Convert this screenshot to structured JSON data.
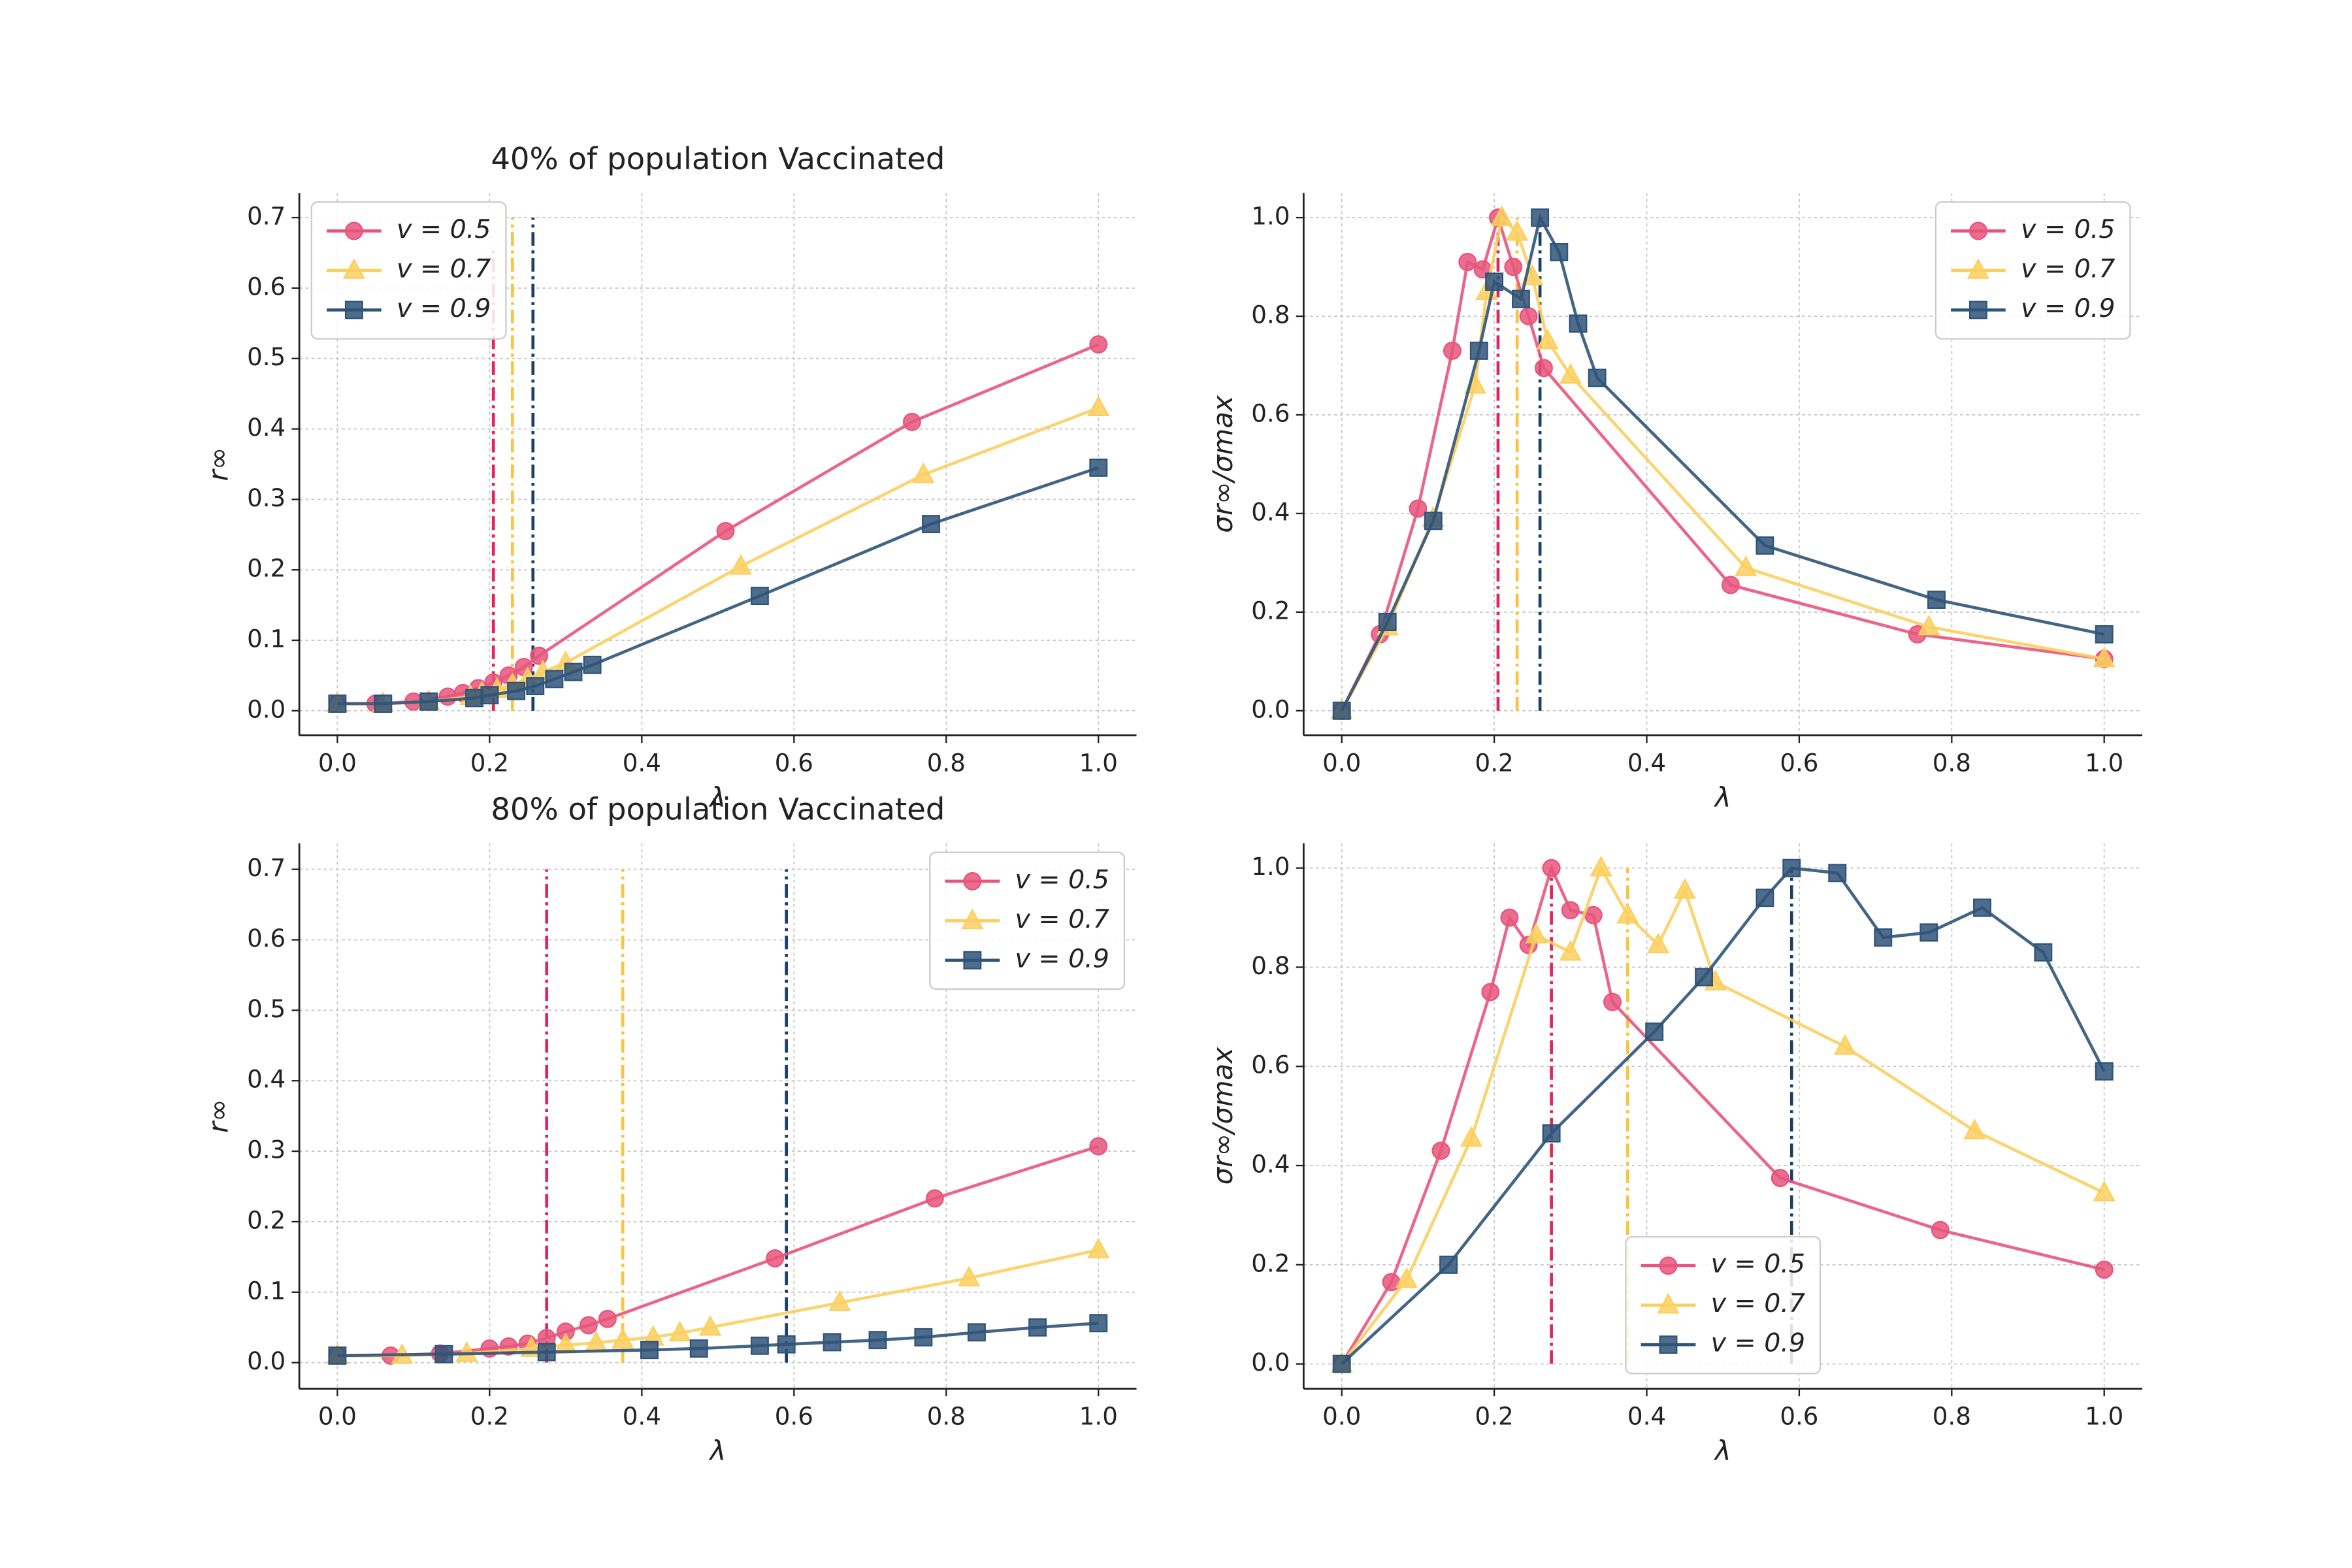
{
  "chart_data": [
    {
      "type": "line",
      "title": "40% of population Vaccinated",
      "xlabel": "λ",
      "ylabel": "r∞",
      "xlim": [
        -0.05,
        1.05
      ],
      "ylim": [
        -0.035,
        0.735
      ],
      "xticks": [
        {
          "value": 0,
          "label": "0.0"
        },
        0.2,
        0.4,
        0.6,
        0.8,
        {
          "value": 1,
          "label": "1.0"
        }
      ],
      "yticks": [
        {
          "value": 0,
          "label": "0.0"
        },
        0.1,
        0.2,
        0.3,
        0.4,
        0.5,
        0.6,
        0.7
      ],
      "grid": true,
      "legend": "upper left",
      "vlines": [
        {
          "x": 0.205,
          "ymin": 0,
          "ymax": 0.66,
          "color": "#e0245e"
        },
        {
          "x": 0.23,
          "ymin": 0,
          "ymax": 0.7,
          "color": "#f9c440"
        },
        {
          "x": 0.257,
          "ymin": 0,
          "ymax": 0.7,
          "color": "#1b3f66"
        }
      ],
      "series": [
        {
          "name": "v = 0.5",
          "color": "#e8557c",
          "marker": "circle",
          "x": [
            0,
            0.05,
            0.1,
            0.145,
            0.165,
            0.185,
            0.205,
            0.225,
            0.245,
            0.265,
            0.51,
            0.755,
            1.0
          ],
          "values": [
            0.01,
            0.01,
            0.013,
            0.02,
            0.025,
            0.032,
            0.04,
            0.05,
            0.062,
            0.078,
            0.255,
            0.41,
            0.52
          ]
        },
        {
          "name": "v = 0.7",
          "color": "#fbcf5f",
          "marker": "triangle",
          "x": [
            0,
            0.06,
            0.12,
            0.175,
            0.19,
            0.21,
            0.23,
            0.25,
            0.27,
            0.3,
            0.53,
            0.77,
            1.0
          ],
          "values": [
            0.01,
            0.01,
            0.013,
            0.02,
            0.025,
            0.03,
            0.037,
            0.045,
            0.055,
            0.068,
            0.205,
            0.335,
            0.43
          ]
        },
        {
          "name": "v = 0.9",
          "color": "#2f5478",
          "marker": "square",
          "x": [
            0,
            0.06,
            0.12,
            0.18,
            0.2,
            0.235,
            0.26,
            0.285,
            0.31,
            0.335,
            0.555,
            0.78,
            1.0
          ],
          "values": [
            0.01,
            0.01,
            0.013,
            0.018,
            0.022,
            0.028,
            0.035,
            0.045,
            0.055,
            0.065,
            0.163,
            0.265,
            0.345
          ]
        }
      ]
    },
    {
      "type": "line",
      "xlabel": "λ",
      "ylabel": "σr∞/σmax",
      "xlim": [
        -0.05,
        1.05
      ],
      "ylim": [
        -0.05,
        1.05
      ],
      "xticks": [
        {
          "value": 0,
          "label": "0.0"
        },
        0.2,
        0.4,
        0.6,
        0.8,
        {
          "value": 1,
          "label": "1.0"
        }
      ],
      "yticks": [
        {
          "value": 0,
          "label": "0.0"
        },
        0.2,
        0.4,
        0.6,
        0.8,
        {
          "value": 1,
          "label": "1.0"
        }
      ],
      "grid": true,
      "legend": "upper right",
      "vlines": [
        {
          "x": 0.205,
          "ymin": 0,
          "ymax": 0.97,
          "color": "#e0245e"
        },
        {
          "x": 0.23,
          "ymin": 0,
          "ymax": 1.0,
          "color": "#f9c440"
        },
        {
          "x": 0.26,
          "ymin": 0,
          "ymax": 1.0,
          "color": "#1b3f66"
        }
      ],
      "series": [
        {
          "name": "v = 0.5",
          "color": "#e8557c",
          "marker": "circle",
          "x": [
            0,
            0.05,
            0.1,
            0.145,
            0.165,
            0.185,
            0.205,
            0.225,
            0.245,
            0.265,
            0.51,
            0.755,
            1.0
          ],
          "values": [
            0,
            0.155,
            0.41,
            0.73,
            0.91,
            0.895,
            1.0,
            0.9,
            0.8,
            0.695,
            0.255,
            0.155,
            0.105
          ]
        },
        {
          "name": "v = 0.7",
          "color": "#fbcf5f",
          "marker": "triangle",
          "x": [
            0,
            0.06,
            0.12,
            0.175,
            0.19,
            0.21,
            0.23,
            0.25,
            0.27,
            0.3,
            0.53,
            0.77,
            1.0
          ],
          "values": [
            0,
            0.17,
            0.39,
            0.66,
            0.85,
            1.0,
            0.97,
            0.88,
            0.75,
            0.68,
            0.29,
            0.17,
            0.105
          ]
        },
        {
          "name": "v = 0.9",
          "color": "#2f5478",
          "marker": "square",
          "x": [
            0,
            0.06,
            0.12,
            0.18,
            0.2,
            0.235,
            0.26,
            0.285,
            0.31,
            0.335,
            0.555,
            0.78,
            1.0
          ],
          "values": [
            0,
            0.18,
            0.385,
            0.73,
            0.87,
            0.835,
            1.0,
            0.93,
            0.785,
            0.675,
            0.335,
            0.225,
            0.155
          ]
        }
      ]
    },
    {
      "type": "line",
      "title": "80% of population Vaccinated",
      "xlabel": "λ",
      "ylabel": "r∞",
      "xlim": [
        -0.05,
        1.05
      ],
      "ylim": [
        -0.037,
        0.737
      ],
      "xticks": [
        {
          "value": 0,
          "label": "0.0"
        },
        0.2,
        0.4,
        0.6,
        0.8,
        {
          "value": 1,
          "label": "1.0"
        }
      ],
      "yticks": [
        {
          "value": 0,
          "label": "0.0"
        },
        0.1,
        0.2,
        0.3,
        0.4,
        0.5,
        0.6,
        0.7
      ],
      "grid": true,
      "legend": "upper right",
      "vlines": [
        {
          "x": 0.275,
          "ymin": 0,
          "ymax": 0.7,
          "color": "#e0245e"
        },
        {
          "x": 0.375,
          "ymin": 0,
          "ymax": 0.7,
          "color": "#f9c440"
        },
        {
          "x": 0.59,
          "ymin": 0,
          "ymax": 0.7,
          "color": "#1b3f66"
        }
      ],
      "series": [
        {
          "name": "v = 0.5",
          "color": "#e8557c",
          "marker": "circle",
          "x": [
            0,
            0.07,
            0.135,
            0.2,
            0.225,
            0.25,
            0.275,
            0.3,
            0.33,
            0.355,
            0.575,
            0.785,
            1.0
          ],
          "values": [
            0.01,
            0.01,
            0.013,
            0.02,
            0.023,
            0.027,
            0.035,
            0.044,
            0.053,
            0.062,
            0.148,
            0.233,
            0.307
          ]
        },
        {
          "name": "v = 0.7",
          "color": "#fbcf5f",
          "marker": "triangle",
          "x": [
            0,
            0.085,
            0.17,
            0.255,
            0.3,
            0.34,
            0.375,
            0.415,
            0.45,
            0.49,
            0.66,
            0.83,
            1.0
          ],
          "values": [
            0.01,
            0.01,
            0.013,
            0.02,
            0.025,
            0.028,
            0.032,
            0.036,
            0.042,
            0.05,
            0.085,
            0.12,
            0.16
          ]
        },
        {
          "name": "v = 0.9",
          "color": "#2f5478",
          "marker": "square",
          "x": [
            0,
            0.14,
            0.275,
            0.41,
            0.475,
            0.555,
            0.59,
            0.65,
            0.71,
            0.77,
            0.84,
            0.92,
            1.0
          ],
          "values": [
            0.01,
            0.012,
            0.015,
            0.018,
            0.02,
            0.024,
            0.026,
            0.029,
            0.032,
            0.036,
            0.043,
            0.05,
            0.056
          ]
        }
      ]
    },
    {
      "type": "line",
      "xlabel": "λ",
      "ylabel": "σr∞/σmax",
      "xlim": [
        -0.05,
        1.05
      ],
      "ylim": [
        -0.05,
        1.05
      ],
      "xticks": [
        {
          "value": 0,
          "label": "0.0"
        },
        0.2,
        0.4,
        0.6,
        0.8,
        {
          "value": 1,
          "label": "1.0"
        }
      ],
      "yticks": [
        {
          "value": 0,
          "label": "0.0"
        },
        0.2,
        0.4,
        0.6,
        0.8,
        {
          "value": 1,
          "label": "1.0"
        }
      ],
      "grid": true,
      "legend": "lower center",
      "vlines": [
        {
          "x": 0.275,
          "ymin": 0,
          "ymax": 1.0,
          "color": "#e0245e"
        },
        {
          "x": 0.375,
          "ymin": 0,
          "ymax": 1.0,
          "color": "#f9c440"
        },
        {
          "x": 0.59,
          "ymin": 0,
          "ymax": 1.0,
          "color": "#1b3f66"
        }
      ],
      "series": [
        {
          "name": "v = 0.5",
          "color": "#e8557c",
          "marker": "circle",
          "x": [
            0,
            0.065,
            0.13,
            0.195,
            0.22,
            0.245,
            0.275,
            0.3,
            0.33,
            0.355,
            0.575,
            0.785,
            1.0
          ],
          "values": [
            0,
            0.165,
            0.43,
            0.75,
            0.9,
            0.845,
            1.0,
            0.915,
            0.905,
            0.73,
            0.375,
            0.27,
            0.19
          ]
        },
        {
          "name": "v = 0.7",
          "color": "#fbcf5f",
          "marker": "triangle",
          "x": [
            0,
            0.085,
            0.17,
            0.255,
            0.3,
            0.34,
            0.375,
            0.415,
            0.45,
            0.49,
            0.66,
            0.83,
            1.0
          ],
          "values": [
            0,
            0.17,
            0.455,
            0.865,
            0.83,
            1.0,
            0.905,
            0.845,
            0.955,
            0.77,
            0.64,
            0.47,
            0.345
          ]
        },
        {
          "name": "v = 0.9",
          "color": "#2f5478",
          "marker": "square",
          "x": [
            0,
            0.14,
            0.275,
            0.41,
            0.475,
            0.555,
            0.59,
            0.65,
            0.71,
            0.77,
            0.84,
            0.92,
            1.0
          ],
          "values": [
            0,
            0.2,
            0.465,
            0.67,
            0.78,
            0.94,
            1.0,
            0.99,
            0.86,
            0.87,
            0.92,
            0.83,
            0.59
          ]
        }
      ]
    }
  ]
}
